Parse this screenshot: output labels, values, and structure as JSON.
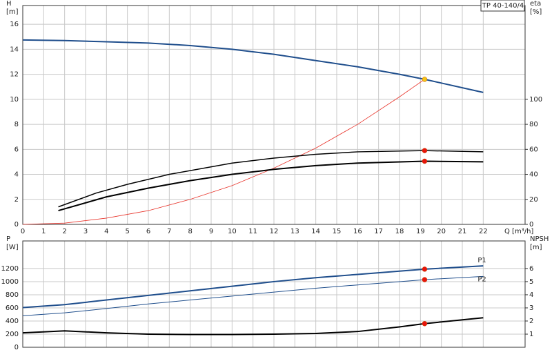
{
  "chart_data": [
    {
      "type": "line",
      "annotation": "TP 40-140/4",
      "xlabel": "Q [m³/h]",
      "ylabel": "H",
      "yunit": "[m]",
      "y2label": "eta",
      "y2unit": "[%]",
      "xlim": [
        0,
        24
      ],
      "xticks": [
        0,
        1,
        2,
        3,
        4,
        5,
        6,
        7,
        8,
        9,
        10,
        11,
        12,
        13,
        14,
        15,
        16,
        17,
        18,
        19,
        20,
        21,
        22
      ],
      "xtick_labels": true,
      "grid": true,
      "ylim": [
        0,
        17.5
      ],
      "yticks": [
        0,
        2,
        4,
        6,
        8,
        10,
        12,
        14,
        16
      ],
      "y2lim": [
        0,
        175
      ],
      "y2ticks": [
        0,
        20,
        40,
        60,
        80,
        100
      ],
      "series": [
        {
          "color": "#1f4e8c",
          "width": 2,
          "x": [
            0,
            2,
            4,
            6,
            8,
            10,
            12,
            14,
            16,
            18,
            19.2,
            20,
            22
          ],
          "values": [
            14.75,
            14.7,
            14.6,
            14.5,
            14.3,
            14.0,
            13.6,
            13.1,
            12.6,
            12.0,
            11.6,
            11.3,
            10.55
          ]
        },
        {
          "color": "#e8332a",
          "width": 0.8,
          "x": [
            0,
            2,
            4,
            6,
            8,
            10,
            12,
            14,
            16,
            18,
            19.2
          ],
          "values": [
            0,
            0.1,
            0.5,
            1.1,
            2.0,
            3.1,
            4.5,
            6.1,
            8.0,
            10.2,
            11.6
          ]
        },
        {
          "color": "#000000",
          "width": 1.5,
          "axis": "y2",
          "x": [
            1.7,
            3.5,
            5,
            7,
            10,
            12,
            14,
            16,
            19.2,
            22
          ],
          "values": [
            14,
            25,
            32,
            40,
            49,
            53,
            56,
            58,
            59,
            58
          ]
        },
        {
          "color": "#000000",
          "width": 2,
          "axis": "y2",
          "x": [
            1.7,
            4,
            6,
            8,
            10,
            12,
            14,
            16,
            19.2,
            22
          ],
          "values": [
            11,
            22,
            29,
            35,
            40,
            44,
            47,
            49,
            50.5,
            50
          ]
        }
      ],
      "points": [
        {
          "x": 19.2,
          "y": 11.6,
          "color": "#f5c518"
        },
        {
          "x": 19.2,
          "y": 59,
          "axis": "y2",
          "color": "#e8140c"
        },
        {
          "x": 19.2,
          "y": 50.5,
          "axis": "y2",
          "color": "#e8140c"
        }
      ]
    },
    {
      "type": "line",
      "ylabel": "P",
      "yunit": "[W]",
      "y2label": "NPSH",
      "y2unit": "[m]",
      "xlim": [
        0,
        24
      ],
      "xticks": [
        0,
        1,
        2,
        3,
        4,
        5,
        6,
        7,
        8,
        9,
        10,
        11,
        12,
        13,
        14,
        15,
        16,
        17,
        18,
        19,
        20,
        21,
        22
      ],
      "xtick_labels": false,
      "grid": true,
      "ylim": [
        0,
        1620
      ],
      "yticks": [
        0,
        200,
        400,
        600,
        800,
        1000,
        1200
      ],
      "y2lim": [
        0,
        8.1
      ],
      "y2ticks": [
        1,
        2,
        3,
        4,
        5,
        6
      ],
      "series": [
        {
          "name": "P1",
          "color": "#1f4e8c",
          "width": 2,
          "x": [
            0,
            2,
            4,
            6,
            8,
            10,
            12,
            14,
            16,
            19.2,
            22
          ],
          "values": [
            605,
            650,
            720,
            790,
            860,
            930,
            1000,
            1060,
            1110,
            1190,
            1240
          ]
        },
        {
          "name": "P2",
          "color": "#1f4e8c",
          "width": 1,
          "x": [
            0,
            2,
            4,
            6,
            8,
            10,
            12,
            14,
            16,
            19.2,
            22
          ],
          "values": [
            480,
            525,
            590,
            660,
            720,
            780,
            840,
            900,
            950,
            1030,
            1080
          ]
        },
        {
          "color": "#000000",
          "width": 2,
          "axis": "y2",
          "x": [
            0,
            2,
            4,
            6,
            8,
            10,
            12,
            14,
            16,
            18,
            19.2,
            22
          ],
          "values": [
            1.1,
            1.25,
            1.1,
            1.0,
            0.97,
            0.97,
            1.0,
            1.05,
            1.2,
            1.55,
            1.8,
            2.25
          ]
        }
      ],
      "points": [
        {
          "x": 19.2,
          "y": 1190,
          "color": "#e8140c"
        },
        {
          "x": 19.2,
          "y": 1030,
          "color": "#e8140c"
        },
        {
          "x": 19.2,
          "y": 1.8,
          "axis": "y2",
          "color": "#e8140c"
        }
      ]
    }
  ]
}
